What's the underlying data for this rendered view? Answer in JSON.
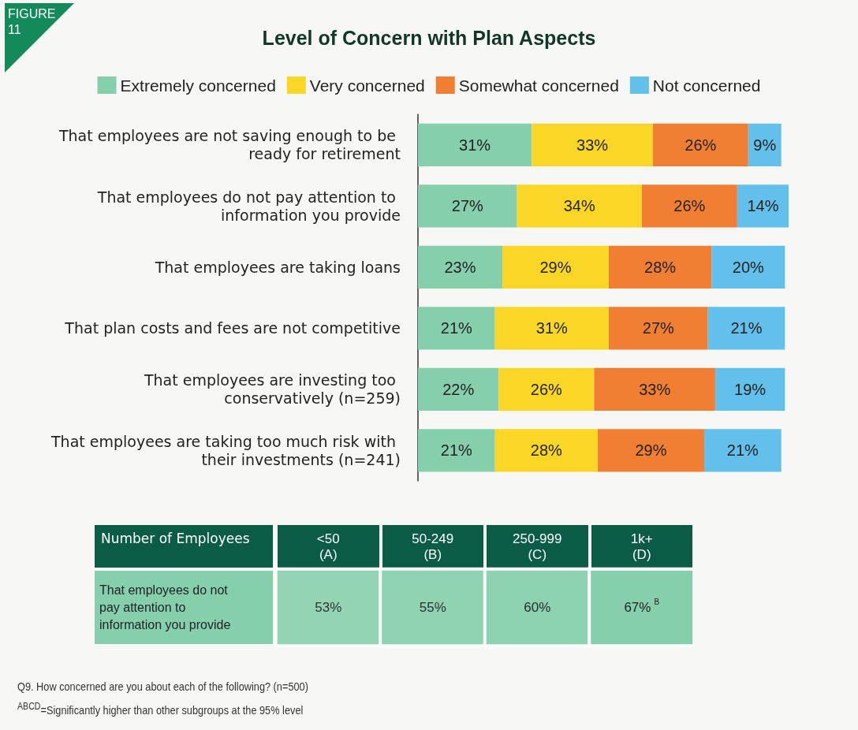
{
  "chart_data": [
    {
      "type": "bar",
      "orientation": "horizontal",
      "stacked": true,
      "title": "Level of Concern with Plan Aspects",
      "legend": "top",
      "grid": false,
      "tick_labels": "y",
      "xlim": [
        0,
        101
      ],
      "annotations": [
        "FIGURE 11"
      ],
      "categories": [
        "That employees are not saving enough to be ready for retirement",
        "That employees do not pay attention to information you provide",
        "That employees are taking loans",
        "That plan costs and fees are not competitive",
        "That employees are investing too conservatively (n=259)",
        "That employees are taking too much risk with their investments (n=241)"
      ],
      "series": [
        {
          "name": "Extremely concerned",
          "color": "#86cfac",
          "values": [
            31,
            27,
            23,
            21,
            22,
            21
          ],
          "value_labels": [
            "31%",
            "27%",
            "23%",
            "21%",
            "22%",
            "21%"
          ]
        },
        {
          "name": "Very concerned",
          "color": "#fad726",
          "values": [
            33,
            34,
            29,
            31,
            26,
            28
          ],
          "value_labels": [
            "33%",
            "34%",
            "29%",
            "31%",
            "26%",
            "28%"
          ]
        },
        {
          "name": "Somewhat concerned",
          "color": "#f07f33",
          "values": [
            26,
            26,
            28,
            27,
            33,
            29
          ],
          "value_labels": [
            "26%",
            "26%",
            "28%",
            "27%",
            "33%",
            "29%"
          ]
        },
        {
          "name": "Not concerned",
          "color": "#62c0ea",
          "values": [
            9,
            14,
            20,
            21,
            19,
            21
          ],
          "value_labels": [
            "9%",
            "14%",
            "20%",
            "21%",
            "19%",
            "21%"
          ]
        }
      ]
    },
    {
      "type": "heatmap",
      "xlabel": "Number of Employees",
      "color": "#86cfac",
      "categories": [
        "<50\n(A)",
        "50-249\n(B)",
        "250-999\n(C)",
        "1k+\n(D)"
      ],
      "y_categories": [
        "That employees do not pay attention to information you provide"
      ],
      "cells": [
        [
          53,
          55,
          60,
          67
        ]
      ],
      "cell_labels": [
        [
          "53%",
          "55%",
          "60%",
          "67%$^{B}$"
        ]
      ],
      "annotations": [
        "Q9. How concerned are you about each of the following? (n=500)",
        "$^{ABCD}$=Significantly higher than other subgroups at the 95% level"
      ]
    }
  ]
}
